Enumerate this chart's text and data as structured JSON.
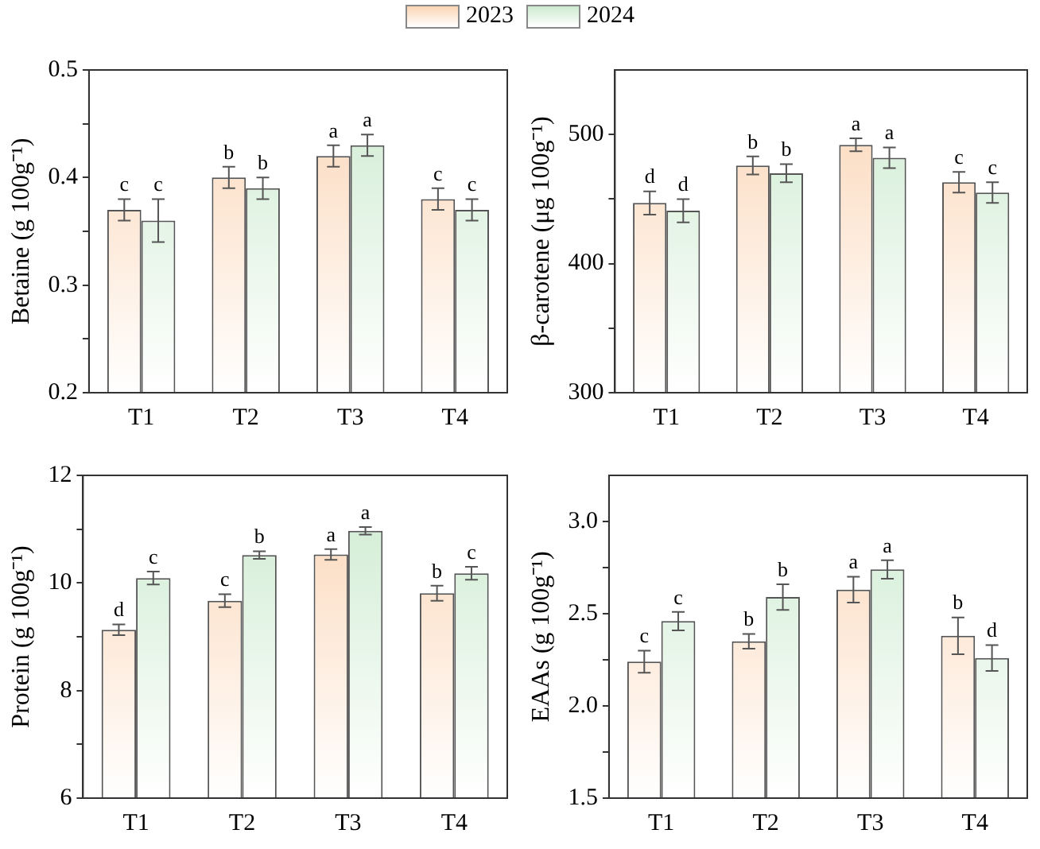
{
  "chart_data": [
    {
      "type": "bar",
      "ylabel": "Betaine (g 100g⁻¹)",
      "categories": [
        "T1",
        "T2",
        "T3",
        "T4"
      ],
      "legend": "top",
      "grid": false,
      "ylim": [
        0.2,
        0.5
      ],
      "yticks": [
        0.2,
        {
          "value": 0.25,
          "label": null
        },
        0.3,
        {
          "value": 0.35,
          "label": null
        },
        0.4,
        {
          "value": 0.45,
          "label": null
        },
        0.5
      ],
      "series": [
        {
          "name": "2023",
          "color": "#fbd5b5",
          "values": [
            0.37,
            0.4,
            0.42,
            0.38
          ],
          "errors": [
            0.01,
            0.01,
            0.01,
            0.01
          ],
          "value_labels": [
            "c",
            "b",
            "a",
            "c"
          ]
        },
        {
          "name": "2024",
          "color": "#cdebd0",
          "values": [
            0.36,
            0.39,
            0.43,
            0.37
          ],
          "errors": [
            0.02,
            0.01,
            0.01,
            0.01
          ],
          "value_labels": [
            "c",
            "b",
            "a",
            "c"
          ]
        }
      ]
    },
    {
      "type": "bar",
      "ylabel": "β-carotene (μg 100g⁻¹)",
      "categories": [
        "T1",
        "T2",
        "T3",
        "T4"
      ],
      "grid": false,
      "ylim": [
        300,
        550
      ],
      "yticks": [
        300,
        {
          "value": 350,
          "label": null
        },
        400,
        {
          "value": 450,
          "label": null
        },
        500
      ],
      "series": [
        {
          "color": "#fbd5b5",
          "values": [
            447,
            476,
            492,
            463
          ],
          "errors": [
            9,
            7,
            5,
            8
          ],
          "value_labels": [
            "d",
            "b",
            "a",
            "c"
          ]
        },
        {
          "color": "#cdebd0",
          "values": [
            441,
            470,
            482,
            455
          ],
          "errors": [
            9,
            7,
            8,
            8
          ],
          "value_labels": [
            "d",
            "b",
            "a",
            "c"
          ]
        }
      ]
    },
    {
      "type": "bar",
      "ylabel": "Protein (g 100g⁻¹)",
      "categories": [
        "T1",
        "T2",
        "T3",
        "T4"
      ],
      "grid": false,
      "ylim": [
        6,
        12
      ],
      "yticks": [
        6,
        {
          "value": 7,
          "label": null
        },
        8,
        {
          "value": 9,
          "label": null
        },
        10,
        {
          "value": 11,
          "label": null
        },
        12
      ],
      "series": [
        {
          "color": "#fbd5b5",
          "values": [
            9.13,
            9.67,
            10.53,
            9.81
          ],
          "errors": [
            0.1,
            0.12,
            0.1,
            0.14
          ],
          "value_labels": [
            "d",
            "c",
            "a",
            "b"
          ]
        },
        {
          "color": "#cdebd0",
          "values": [
            10.09,
            10.52,
            10.97,
            10.18
          ],
          "errors": [
            0.12,
            0.07,
            0.07,
            0.12
          ],
          "value_labels": [
            "c",
            "b",
            "a",
            "c"
          ]
        }
      ]
    },
    {
      "type": "bar",
      "ylabel": "EAAs (g 100g⁻¹)",
      "categories": [
        "T1",
        "T2",
        "T3",
        "T4"
      ],
      "grid": false,
      "ylim": [
        1.5,
        3.25
      ],
      "yticks": [
        {
          "value": 1.5,
          "label": "1.5"
        },
        {
          "value": 1.75,
          "label": null
        },
        {
          "value": 2,
          "label": "2.0"
        },
        {
          "value": 2.25,
          "label": null
        },
        2.5,
        {
          "value": 2.75,
          "label": null
        },
        {
          "value": 3,
          "label": "3.0"
        }
      ],
      "series": [
        {
          "color": "#fbd5b5",
          "values": [
            2.24,
            2.35,
            2.63,
            2.38
          ],
          "errors": [
            0.06,
            0.04,
            0.07,
            0.1
          ],
          "value_labels": [
            "c",
            "b",
            "a",
            "b"
          ]
        },
        {
          "color": "#cdebd0",
          "values": [
            2.46,
            2.59,
            2.74,
            2.26
          ],
          "errors": [
            0.05,
            0.07,
            0.05,
            0.07
          ],
          "value_labels": [
            "c",
            "b",
            "a",
            "d"
          ]
        }
      ]
    }
  ]
}
